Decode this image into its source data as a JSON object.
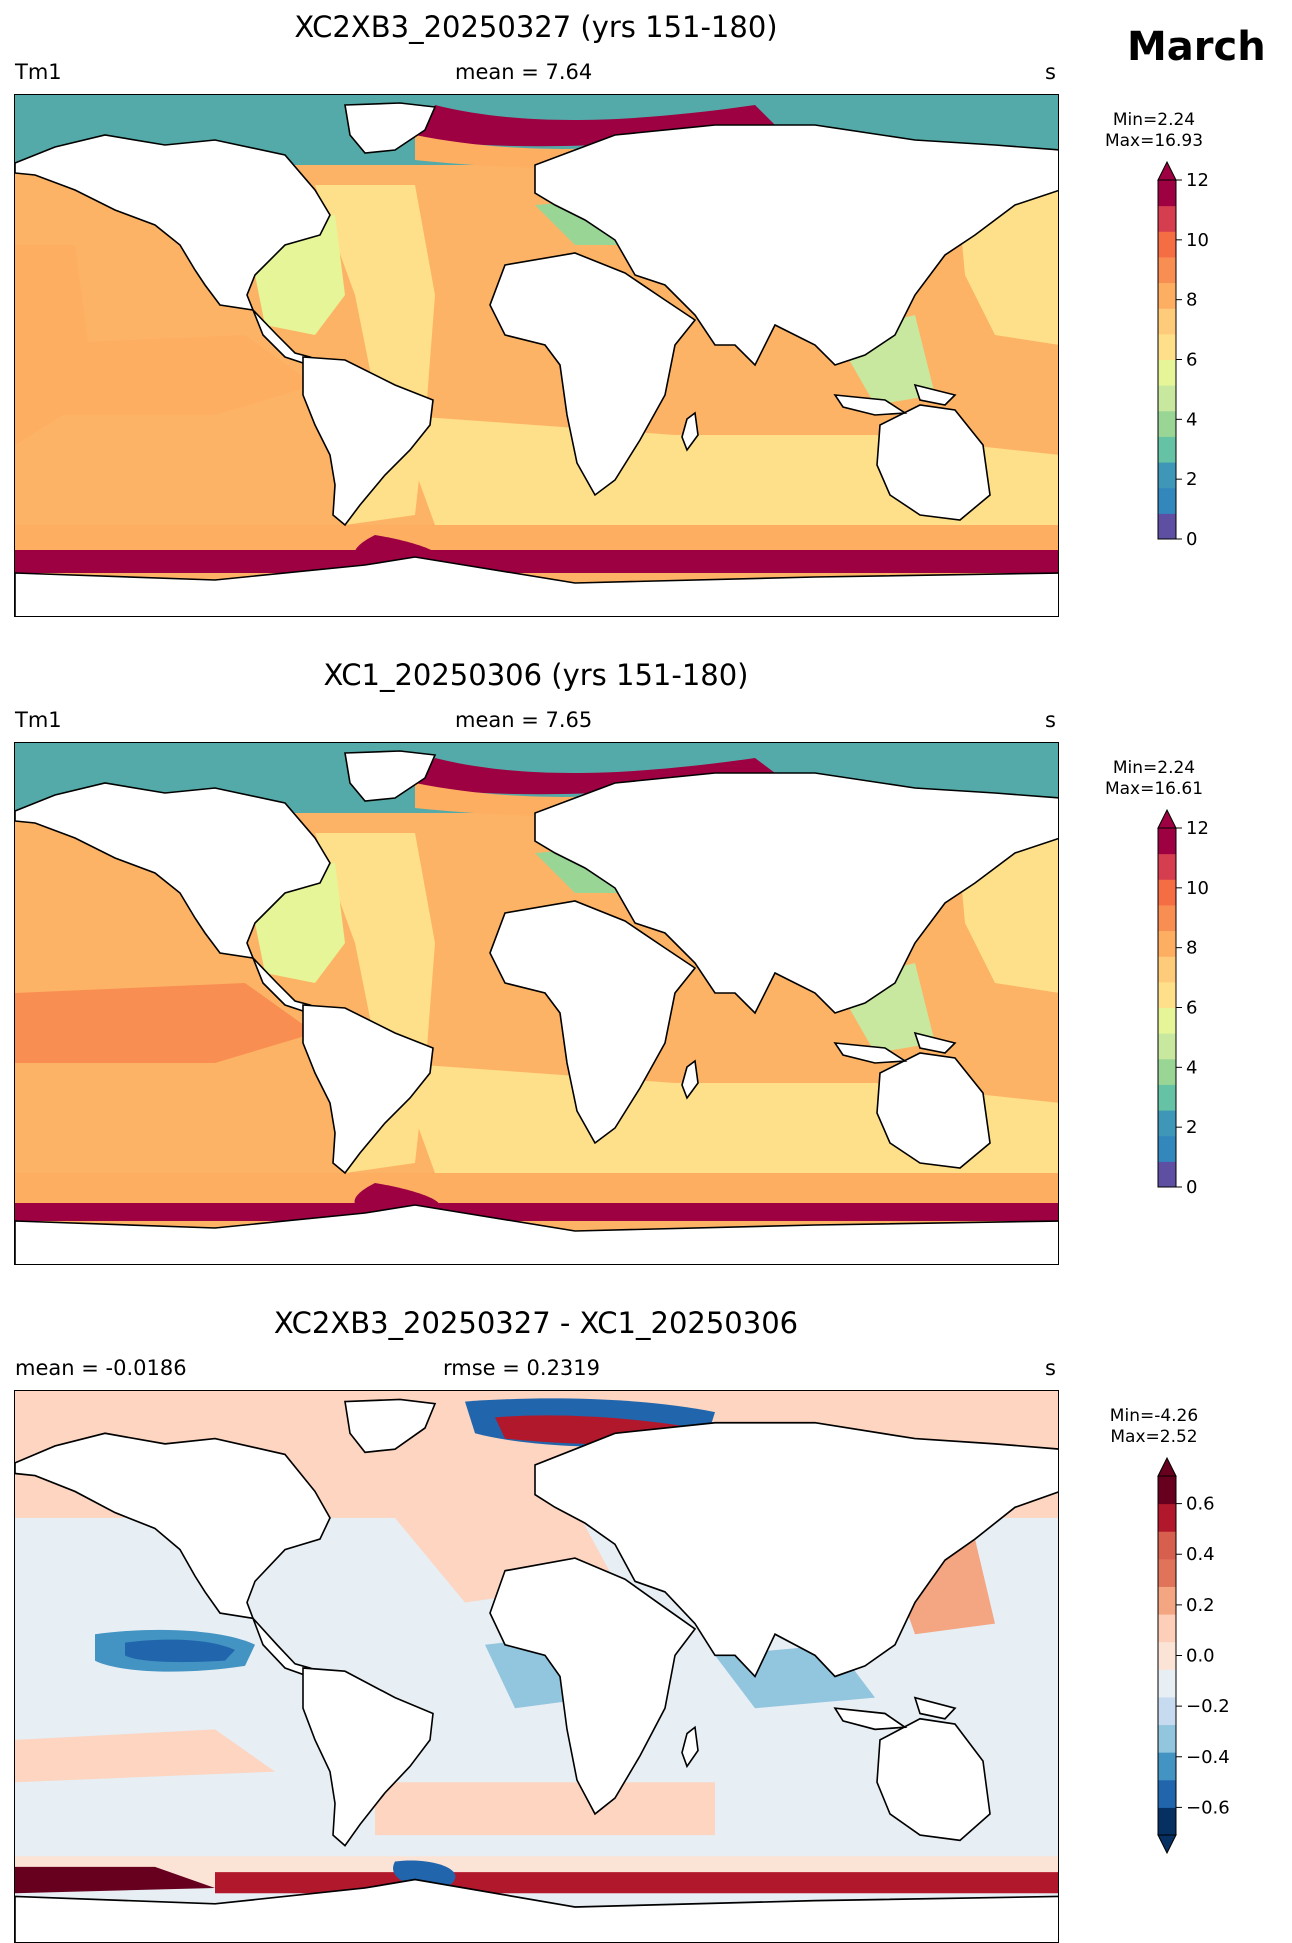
{
  "month_label": "March",
  "panels": [
    {
      "id": "top",
      "title": "XC2XB3_20250327 (yrs 151-180)",
      "left_label": "Tm1",
      "center_label": "mean = 7.64",
      "right_label": "s",
      "min_label": "Min=2.24",
      "max_label": "Max=16.93",
      "colorbar": {
        "ticks": [
          "0",
          "2",
          "4",
          "6",
          "8",
          "10",
          "12"
        ],
        "colors": [
          "#5e4fa2",
          "#3288bd",
          "#3e97b6",
          "#66c2a5",
          "#99d594",
          "#c7e89e",
          "#e6f598",
          "#fee08b",
          "#fdcb7a",
          "#fdae61",
          "#f98e52",
          "#f46d43",
          "#d53e4f",
          "#9e0142"
        ]
      }
    },
    {
      "id": "middle",
      "title": "XC1_20250306 (yrs 151-180)",
      "left_label": "Tm1",
      "center_label": "mean = 7.65",
      "right_label": "s",
      "min_label": "Min=2.24",
      "max_label": "Max=16.61",
      "colorbar": {
        "ticks": [
          "0",
          "2",
          "4",
          "6",
          "8",
          "10",
          "12"
        ],
        "colors": [
          "#5e4fa2",
          "#3288bd",
          "#3e97b6",
          "#66c2a5",
          "#99d594",
          "#c7e89e",
          "#e6f598",
          "#fee08b",
          "#fdcb7a",
          "#fdae61",
          "#f98e52",
          "#f46d43",
          "#d53e4f",
          "#9e0142"
        ]
      }
    },
    {
      "id": "bottom",
      "title": "XC2XB3_20250327 - XC1_20250306",
      "left_label": "mean = -0.0186",
      "center_label": "rmse = 0.2319",
      "right_label": "s",
      "min_label": "Min=-4.26",
      "max_label": "Max=2.52",
      "colorbar": {
        "ticks": [
          "−0.6",
          "−0.4",
          "−0.2",
          "0.0",
          "0.2",
          "0.4",
          "0.6"
        ],
        "colors": [
          "#053061",
          "#2166ac",
          "#4393c3",
          "#92c5de",
          "#c6dbef",
          "#e7eef4",
          "#fbe3d6",
          "#fdcfb9",
          "#f4a582",
          "#e0745a",
          "#d6604d",
          "#b2182b",
          "#67001f"
        ]
      }
    }
  ]
}
